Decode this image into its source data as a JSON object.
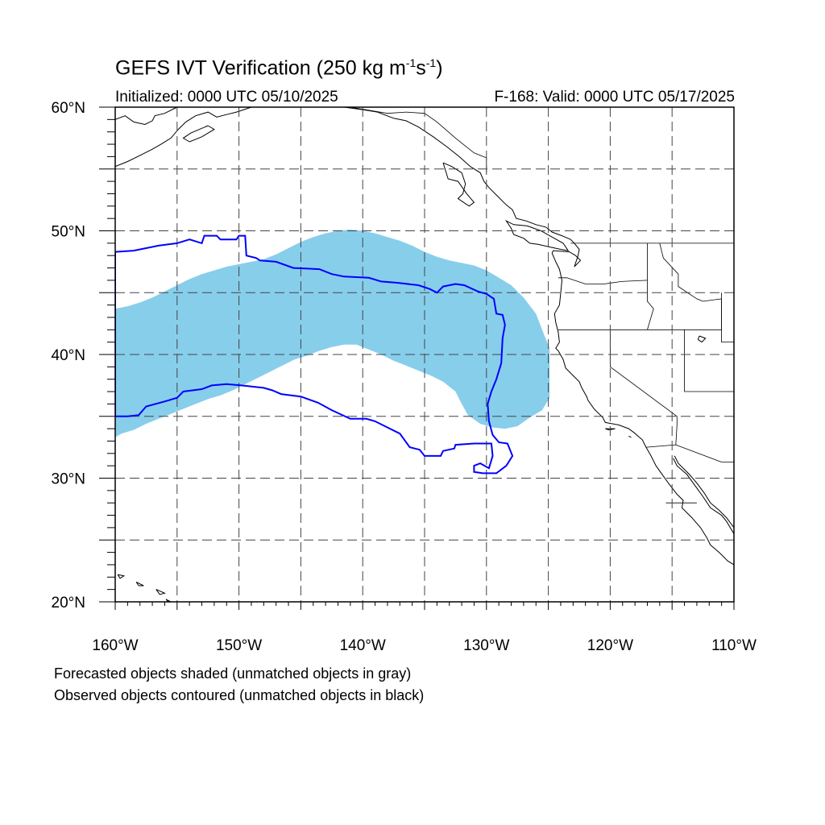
{
  "title": {
    "main": "GEFS IVT Verification (250 kg m",
    "sup1": "-1",
    "mid": "s",
    "sup2": "-1",
    "end": ")"
  },
  "initialized": "Initialized: 0000 UTC 05/10/2025",
  "valid": "F-168: Valid: 0000 UTC 05/17/2025",
  "notes": {
    "forecast": "Forecasted objects shaded (unmatched objects in gray)",
    "observed": "Observed objects contoured (unmatched objects in black)"
  },
  "axes": {
    "lon_range": [
      -160,
      -110
    ],
    "lat_range": [
      20,
      60
    ],
    "x_ticks": [
      {
        "lon": -160,
        "label": "160°W"
      },
      {
        "lon": -150,
        "label": "150°W"
      },
      {
        "lon": -140,
        "label": "140°W"
      },
      {
        "lon": -130,
        "label": "130°W"
      },
      {
        "lon": -120,
        "label": "120°W"
      },
      {
        "lon": -110,
        "label": "110°W"
      }
    ],
    "y_ticks": [
      {
        "lat": 60,
        "label": "60°N"
      },
      {
        "lat": 50,
        "label": "50°N"
      },
      {
        "lat": 40,
        "label": "40°N"
      },
      {
        "lat": 30,
        "label": "30°N"
      },
      {
        "lat": 20,
        "label": "20°N"
      }
    ],
    "grid_lons": [
      -155,
      -150,
      -145,
      -140,
      -135,
      -130,
      -125,
      -120,
      -115
    ],
    "grid_lats": [
      55,
      50,
      45,
      40,
      35,
      30,
      25
    ]
  },
  "colors": {
    "forecast_fill": "#87ceeb",
    "observed_line": "#0000ff",
    "coast": "#000000",
    "grid": "#444444"
  },
  "forecast_object": [
    [
      -160,
      43.7
    ],
    [
      -159,
      43.9
    ],
    [
      -158,
      44.2
    ],
    [
      -157,
      44.6
    ],
    [
      -156,
      45.1
    ],
    [
      -155,
      45.6
    ],
    [
      -154,
      46.1
    ],
    [
      -153,
      46.5
    ],
    [
      -152,
      46.8
    ],
    [
      -151,
      47.1
    ],
    [
      -150,
      47.3
    ],
    [
      -149,
      47.5
    ],
    [
      -148,
      47.7
    ],
    [
      -147,
      48.1
    ],
    [
      -146,
      48.6
    ],
    [
      -145,
      49.1
    ],
    [
      -144,
      49.5
    ],
    [
      -143,
      49.8
    ],
    [
      -142,
      50.0
    ],
    [
      -141,
      50.1
    ],
    [
      -140,
      50.0
    ],
    [
      -139,
      49.8
    ],
    [
      -138,
      49.5
    ],
    [
      -137,
      49.2
    ],
    [
      -136,
      48.8
    ],
    [
      -135,
      48.3
    ],
    [
      -134,
      47.9
    ],
    [
      -133,
      47.6
    ],
    [
      -132,
      47.4
    ],
    [
      -131,
      47.2
    ],
    [
      -130,
      46.8
    ],
    [
      -129,
      46.2
    ],
    [
      -128,
      45.6
    ],
    [
      -127,
      44.6
    ],
    [
      -126,
      43.3
    ],
    [
      -125.5,
      42.0
    ],
    [
      -124.9,
      40.5
    ],
    [
      -124.9,
      36.5
    ],
    [
      -125.5,
      35.5
    ],
    [
      -126.5,
      34.9
    ],
    [
      -127.5,
      34.2
    ],
    [
      -128.5,
      34.0
    ],
    [
      -129.5,
      34.1
    ],
    [
      -130.5,
      34.4
    ],
    [
      -131.5,
      35.1
    ],
    [
      -132,
      36.0
    ],
    [
      -132.5,
      37.0
    ],
    [
      -133.5,
      37.8
    ],
    [
      -134.5,
      38.3
    ],
    [
      -135.5,
      38.7
    ],
    [
      -136.5,
      39.1
    ],
    [
      -137.5,
      39.5
    ],
    [
      -138.5,
      40.0
    ],
    [
      -139.5,
      40.4
    ],
    [
      -140.5,
      40.8
    ],
    [
      -141.5,
      40.8
    ],
    [
      -142.5,
      40.6
    ],
    [
      -143.5,
      40.3
    ],
    [
      -144.5,
      39.9
    ],
    [
      -145.5,
      39.6
    ],
    [
      -146.5,
      39.1
    ],
    [
      -147.5,
      38.6
    ],
    [
      -148.5,
      38.1
    ],
    [
      -149.5,
      37.6
    ],
    [
      -150.5,
      37.1
    ],
    [
      -151.5,
      36.7
    ],
    [
      -152.5,
      36.4
    ],
    [
      -153.5,
      36.0
    ],
    [
      -154.5,
      35.6
    ],
    [
      -155.5,
      35.2
    ],
    [
      -156.5,
      34.8
    ],
    [
      -157.5,
      34.4
    ],
    [
      -158.5,
      33.9
    ],
    [
      -159.5,
      33.6
    ],
    [
      -160,
      33.3
    ]
  ],
  "observed_object": [
    [
      -160,
      48.3
    ],
    [
      -158.5,
      48.4
    ],
    [
      -156.5,
      48.8
    ],
    [
      -155,
      49.0
    ],
    [
      -154,
      49.3
    ],
    [
      -153,
      49.0
    ],
    [
      -152.8,
      49.6
    ],
    [
      -151.8,
      49.6
    ],
    [
      -151.5,
      49.3
    ],
    [
      -150.2,
      49.3
    ],
    [
      -150,
      49.6
    ],
    [
      -149.5,
      49.6
    ],
    [
      -149.4,
      48.0
    ],
    [
      -148.6,
      47.8
    ],
    [
      -148.3,
      47.6
    ],
    [
      -147,
      47.5
    ],
    [
      -145.6,
      47.0
    ],
    [
      -143.5,
      46.9
    ],
    [
      -142.5,
      46.5
    ],
    [
      -141.5,
      46.3
    ],
    [
      -139.5,
      46.2
    ],
    [
      -138.5,
      45.9
    ],
    [
      -137.2,
      45.8
    ],
    [
      -135.5,
      45.6
    ],
    [
      -134.6,
      45.3
    ],
    [
      -134,
      45.0
    ],
    [
      -133.5,
      45.5
    ],
    [
      -132.5,
      45.7
    ],
    [
      -131.8,
      45.6
    ],
    [
      -130.7,
      45.1
    ],
    [
      -130,
      44.9
    ],
    [
      -129.4,
      44.5
    ],
    [
      -129.2,
      43.3
    ],
    [
      -128.7,
      43.2
    ],
    [
      -128.5,
      42.4
    ],
    [
      -128.7,
      41.3
    ],
    [
      -128.8,
      39.3
    ],
    [
      -129.2,
      38.0
    ],
    [
      -129.6,
      37.0
    ],
    [
      -129.9,
      36.0
    ],
    [
      -129.8,
      34.6
    ],
    [
      -129.5,
      33.5
    ],
    [
      -129,
      32.9
    ],
    [
      -128.3,
      32.8
    ],
    [
      -127.9,
      31.8
    ],
    [
      -128.4,
      31.0
    ],
    [
      -129.2,
      30.4
    ],
    [
      -130.3,
      30.4
    ],
    [
      -131.0,
      30.5
    ],
    [
      -131,
      31.0
    ],
    [
      -130.5,
      31.2
    ],
    [
      -129.8,
      30.8
    ],
    [
      -129.5,
      31.8
    ],
    [
      -129.6,
      32.8
    ],
    [
      -131.0,
      32.8
    ],
    [
      -132.5,
      32.7
    ],
    [
      -132.6,
      32.4
    ],
    [
      -133.5,
      32.2
    ],
    [
      -133.7,
      31.8
    ],
    [
      -135,
      31.8
    ],
    [
      -135.4,
      32.3
    ],
    [
      -136.2,
      32.5
    ],
    [
      -137,
      33.6
    ],
    [
      -138.2,
      34.2
    ],
    [
      -139,
      34.6
    ],
    [
      -139.7,
      34.8
    ],
    [
      -141,
      34.8
    ],
    [
      -142.5,
      35.5
    ],
    [
      -143.6,
      36.1
    ],
    [
      -145,
      36.6
    ],
    [
      -146.6,
      36.8
    ],
    [
      -147.3,
      37.1
    ],
    [
      -148,
      37.3
    ],
    [
      -149.8,
      37.5
    ],
    [
      -151,
      37.6
    ],
    [
      -152.2,
      37.5
    ],
    [
      -153,
      37.2
    ],
    [
      -154.5,
      37.0
    ],
    [
      -155,
      36.5
    ],
    [
      -156,
      36.2
    ],
    [
      -157.5,
      35.8
    ],
    [
      -158.1,
      35.1
    ],
    [
      -159,
      35.0
    ],
    [
      -159.5,
      35.0
    ],
    [
      -160,
      35.0
    ]
  ],
  "coastlines": [
    [
      [
        -124.2,
        40.3
      ],
      [
        -124.4,
        40.5
      ],
      [
        -124.1,
        41.0
      ],
      [
        -124.2,
        41.8
      ],
      [
        -124.4,
        42.6
      ],
      [
        -124.5,
        43.3
      ],
      [
        -124.1,
        44.0
      ],
      [
        -124.0,
        45.0
      ],
      [
        -123.9,
        46.0
      ],
      [
        -124.1,
        46.9
      ],
      [
        -124.4,
        47.5
      ],
      [
        -124.7,
        48.2
      ],
      [
        -124.6,
        48.4
      ],
      [
        -123.3,
        48.3
      ],
      [
        -122.8,
        48.0
      ],
      [
        -122.4,
        47.6
      ],
      [
        -122.9,
        47.1
      ],
      [
        -122.6,
        48.0
      ],
      [
        -122.5,
        48.5
      ],
      [
        -122.9,
        49.0
      ],
      [
        -123.2,
        49.3
      ],
      [
        -123.9,
        49.6
      ],
      [
        -124.7,
        49.9
      ],
      [
        -125.2,
        50.3
      ],
      [
        -126,
        50.5
      ],
      [
        -126.8,
        50.8
      ],
      [
        -127.6,
        51.0
      ],
      [
        -127.9,
        51.7
      ],
      [
        -128.4,
        52.1
      ],
      [
        -129.1,
        52.8
      ],
      [
        -129.8,
        53.5
      ],
      [
        -130.2,
        54.0
      ],
      [
        -130.5,
        54.7
      ],
      [
        -131.3,
        55.2
      ],
      [
        -132.2,
        56.0
      ],
      [
        -133.2,
        56.8
      ],
      [
        -134.3,
        57.6
      ],
      [
        -135.5,
        58.4
      ],
      [
        -136.5,
        58.9
      ],
      [
        -137.5,
        59.1
      ],
      [
        -138.8,
        59.6
      ],
      [
        -140,
        59.8
      ],
      [
        -141.5,
        60.0
      ]
    ],
    [
      [
        -124.2,
        40.3
      ],
      [
        -123.8,
        39.6
      ],
      [
        -123.6,
        38.9
      ],
      [
        -123.0,
        38.3
      ],
      [
        -122.5,
        37.8
      ],
      [
        -122.3,
        37.3
      ],
      [
        -121.9,
        36.6
      ],
      [
        -121.8,
        36.3
      ],
      [
        -121.3,
        35.6
      ],
      [
        -120.6,
        34.9
      ],
      [
        -120.4,
        34.5
      ],
      [
        -119.3,
        34.3
      ],
      [
        -118.5,
        34.0
      ],
      [
        -118.1,
        33.7
      ],
      [
        -117.4,
        33.1
      ],
      [
        -117.1,
        32.5
      ],
      [
        -116.7,
        31.8
      ],
      [
        -116.3,
        31.0
      ],
      [
        -115.8,
        30.3
      ],
      [
        -115.3,
        29.6
      ],
      [
        -114.6,
        28.7
      ],
      [
        -114.1,
        28.2
      ],
      [
        -114.2,
        27.6
      ],
      [
        -113.4,
        26.8
      ],
      [
        -112.7,
        26.0
      ],
      [
        -112.2,
        25.2
      ],
      [
        -111.9,
        24.6
      ],
      [
        -111.2,
        24.0
      ],
      [
        -110.5,
        23.3
      ],
      [
        -110,
        23.0
      ]
    ],
    [
      [
        -114.8,
        31.8
      ],
      [
        -114.5,
        31.2
      ],
      [
        -113.6,
        30.3
      ],
      [
        -113.0,
        29.6
      ],
      [
        -112.4,
        28.8
      ],
      [
        -111.9,
        28.0
      ],
      [
        -111.2,
        27.4
      ],
      [
        -110.6,
        26.8
      ],
      [
        -110.0,
        26.0
      ]
    ],
    [
      [
        -110,
        25.5
      ],
      [
        -110.6,
        26.5
      ],
      [
        -111.0,
        27.0
      ],
      [
        -111.9,
        27.6
      ],
      [
        -112.5,
        28.5
      ],
      [
        -113.0,
        29.2
      ],
      [
        -113.8,
        30.3
      ],
      [
        -114.6,
        31.0
      ],
      [
        -114.9,
        31.6
      ]
    ],
    [
      [
        -160,
        55.2
      ],
      [
        -159,
        55.6
      ],
      [
        -158,
        56.1
      ],
      [
        -157,
        56.6
      ],
      [
        -156.3,
        57.0
      ],
      [
        -155.5,
        57.5
      ],
      [
        -154.9,
        58.2
      ],
      [
        -154.3,
        58.8
      ],
      [
        -153.5,
        59.3
      ],
      [
        -152.5,
        59.6
      ],
      [
        -151.8,
        59.2
      ],
      [
        -151.0,
        59.4
      ],
      [
        -150.2,
        59.6
      ],
      [
        -149.6,
        59.8
      ],
      [
        -149,
        60.0
      ]
    ],
    [
      [
        -160,
        59.0
      ],
      [
        -159.2,
        59.3
      ],
      [
        -158.5,
        58.8
      ],
      [
        -157.6,
        58.6
      ],
      [
        -157.0,
        58.9
      ],
      [
        -156.8,
        59.3
      ],
      [
        -156.0,
        59.5
      ],
      [
        -155.2,
        59.9
      ],
      [
        -155.0,
        60.0
      ]
    ],
    [
      [
        -152.5,
        58.5
      ],
      [
        -152.0,
        58.2
      ],
      [
        -153.0,
        57.6
      ],
      [
        -154.0,
        57.2
      ],
      [
        -154.5,
        57.5
      ],
      [
        -153.9,
        57.9
      ],
      [
        -152.5,
        58.5
      ]
    ],
    [
      [
        -133.5,
        55.5
      ],
      [
        -132.8,
        55.2
      ],
      [
        -132.0,
        54.7
      ],
      [
        -131.7,
        53.8
      ],
      [
        -131.9,
        53.0
      ],
      [
        -132.3,
        52.6
      ],
      [
        -131.4,
        52.0
      ],
      [
        -131.0,
        52.3
      ],
      [
        -131.6,
        53.0
      ],
      [
        -132.3,
        54.0
      ],
      [
        -133.1,
        54.2
      ],
      [
        -133.5,
        55.5
      ]
    ],
    [
      [
        -127.8,
        49.7
      ],
      [
        -127.0,
        49.4
      ],
      [
        -126.5,
        49.0
      ],
      [
        -125.8,
        48.9
      ],
      [
        -124.9,
        48.7
      ],
      [
        -124.0,
        48.5
      ],
      [
        -123.4,
        48.4
      ],
      [
        -123.8,
        49.0
      ],
      [
        -124.7,
        49.5
      ],
      [
        -125.6,
        50.0
      ],
      [
        -126.7,
        50.4
      ],
      [
        -127.8,
        50.5
      ],
      [
        -128.4,
        50.8
      ],
      [
        -128.0,
        50.2
      ],
      [
        -127.8,
        49.7
      ]
    ],
    [
      [
        -120.4,
        34.0
      ],
      [
        -119.6,
        34.0
      ],
      [
        -120.1,
        33.9
      ],
      [
        -120.4,
        34.0
      ]
    ],
    [
      [
        -118.5,
        33.4
      ],
      [
        -118.3,
        33.3
      ],
      [
        -118.5,
        33.4
      ]
    ],
    [
      [
        -155.9,
        20.2
      ],
      [
        -155.5,
        20.0
      ],
      [
        -155.0,
        19.7
      ],
      [
        -155.6,
        19.9
      ],
      [
        -155.9,
        20.2
      ]
    ],
    [
      [
        -156.7,
        21.0
      ],
      [
        -156.0,
        20.7
      ],
      [
        -156.4,
        20.6
      ],
      [
        -156.7,
        21.0
      ]
    ],
    [
      [
        -158.3,
        21.6
      ],
      [
        -157.7,
        21.3
      ],
      [
        -158.1,
        21.3
      ],
      [
        -158.3,
        21.6
      ]
    ],
    [
      [
        -159.8,
        22.2
      ],
      [
        -159.3,
        22.1
      ],
      [
        -159.6,
        21.9
      ],
      [
        -159.8,
        22.2
      ]
    ],
    [
      [
        -112.8,
        41.5
      ],
      [
        -112.3,
        41.3
      ],
      [
        -112.6,
        41.0
      ],
      [
        -112.9,
        41.2
      ],
      [
        -112.8,
        41.5
      ]
    ]
  ],
  "borders": [
    [
      [
        -123.2,
        49.0
      ],
      [
        -110,
        49.0
      ]
    ],
    [
      [
        -141.0,
        60.0
      ],
      [
        -138.0,
        59.5
      ],
      [
        -136.5,
        59.6
      ],
      [
        -135.0,
        59.5
      ],
      [
        -134.0,
        58.8
      ],
      [
        -132.5,
        57.5
      ],
      [
        -131.0,
        56.3
      ],
      [
        -130.0,
        55.9
      ],
      [
        -130.0,
        54.7
      ]
    ],
    [
      [
        -124.2,
        46.2
      ],
      [
        -123.5,
        46.2
      ],
      [
        -122,
        45.7
      ],
      [
        -120.5,
        45.7
      ],
      [
        -119.1,
        45.9
      ],
      [
        -117,
        46.0
      ]
    ],
    [
      [
        -124.2,
        42.0
      ],
      [
        -111,
        42.0
      ]
    ],
    [
      [
        -117,
        49.0
      ],
      [
        -117,
        44.3
      ],
      [
        -116.5,
        43.7
      ],
      [
        -117,
        42.0
      ]
    ],
    [
      [
        -116.0,
        49.0
      ],
      [
        -115.7,
        47.8
      ],
      [
        -114.5,
        46.5
      ],
      [
        -114.5,
        45.5
      ],
      [
        -113.0,
        44.5
      ],
      [
        -112.5,
        44.3
      ],
      [
        -111.0,
        44.5
      ],
      [
        -111.0,
        42.0
      ]
    ],
    [
      [
        -120,
        42.0
      ],
      [
        -120,
        39.0
      ],
      [
        -114.6,
        35.0
      ],
      [
        -114.6,
        34.3
      ],
      [
        -114.7,
        32.7
      ]
    ],
    [
      [
        -114.0,
        42.0
      ],
      [
        -114.0,
        37.0
      ],
      [
        -110.0,
        37.0
      ]
    ],
    [
      [
        -117.1,
        32.5
      ],
      [
        -114.7,
        32.7
      ],
      [
        -111.0,
        31.3
      ],
      [
        -110.0,
        31.3
      ]
    ],
    [
      [
        -111,
        45.0
      ],
      [
        -111,
        41.0
      ],
      [
        -110,
        41.0
      ]
    ],
    [
      [
        -115.5,
        28.0
      ],
      [
        -113.0,
        28.0
      ]
    ]
  ]
}
